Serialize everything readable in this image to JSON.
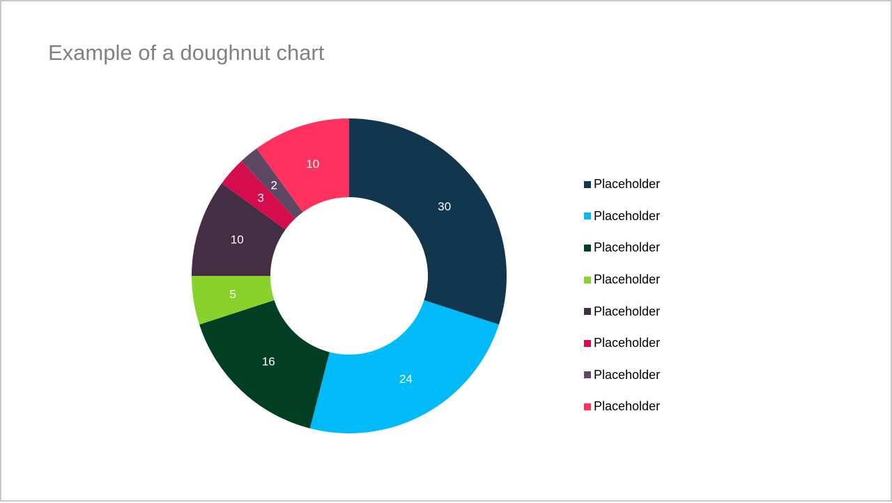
{
  "title": "Example of a doughnut chart",
  "chart_data": {
    "type": "pie",
    "variant": "doughnut",
    "values": [
      30,
      24,
      16,
      5,
      10,
      3,
      2,
      10
    ],
    "data_labels": [
      "30",
      "24",
      "16",
      "5",
      "10",
      "3",
      "2",
      "10"
    ],
    "legend": [
      "Placeholder",
      "Placeholder",
      "Placeholder",
      "Placeholder",
      "Placeholder",
      "Placeholder",
      "Placeholder",
      "Placeholder"
    ],
    "colors": [
      "#12364e",
      "#00bbf8",
      "#003f24",
      "#88d22b",
      "#432e44",
      "#d60d4d",
      "#5d4762",
      "#ff315e"
    ],
    "legend_position": "right"
  }
}
